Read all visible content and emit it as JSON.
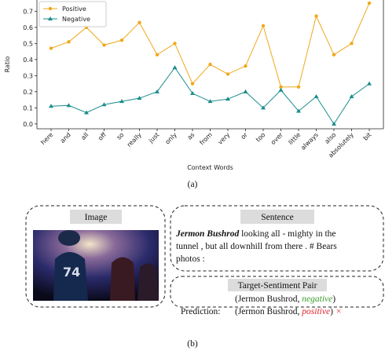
{
  "chart_data": {
    "type": "line",
    "categories": [
      "here",
      "and",
      "all",
      "off",
      "so",
      "really",
      "just",
      "only",
      "as",
      "from",
      "very",
      "or",
      "too",
      "over",
      "little",
      "always",
      "also",
      "absolutely",
      "bit"
    ],
    "series": [
      {
        "name": "Positive",
        "color": "#f0a81c",
        "marker": "circle",
        "values": [
          0.47,
          0.51,
          0.6,
          0.49,
          0.52,
          0.63,
          0.43,
          0.5,
          0.25,
          0.37,
          0.31,
          0.36,
          0.61,
          0.23,
          0.23,
          0.67,
          0.43,
          0.5,
          0.75
        ]
      },
      {
        "name": "Negative",
        "color": "#1a8c8c",
        "marker": "triangle",
        "values": [
          0.11,
          0.115,
          0.07,
          0.12,
          0.14,
          0.16,
          0.2,
          0.35,
          0.19,
          0.14,
          0.155,
          0.2,
          0.1,
          0.21,
          0.08,
          0.17,
          0.0,
          0.17,
          0.25
        ]
      }
    ],
    "xlabel": "Context Words",
    "ylabel": "Ratio",
    "ylim": [
      -0.03,
      0.77
    ],
    "yticks": [
      {
        "value": 0,
        "label": "0.0"
      },
      0.1,
      0.2,
      0.3,
      0.4,
      0.5,
      0.6,
      0.7
    ],
    "grid": false,
    "legend": "upper left"
  },
  "caption_a": "(a)",
  "caption_b": "(b)",
  "image_panel": {
    "label": "Image"
  },
  "sentence_panel": {
    "label": "Sentence",
    "target": "Jermon Bushrod",
    "lines": [
      " looking all - mighty in the",
      "tunnel , but all downhill from there . # Bears",
      "photos :"
    ]
  },
  "pair_panel": {
    "label": "Target-Sentiment Pair",
    "gold": {
      "open": "(Jermon Bushrod, ",
      "sentiment": "negative",
      "close": ")"
    },
    "prediction": {
      "label": "Prediction:",
      "open": "(Jermon Bushrod, ",
      "sentiment": "positive",
      "close": ")",
      "verdict": "×"
    }
  }
}
